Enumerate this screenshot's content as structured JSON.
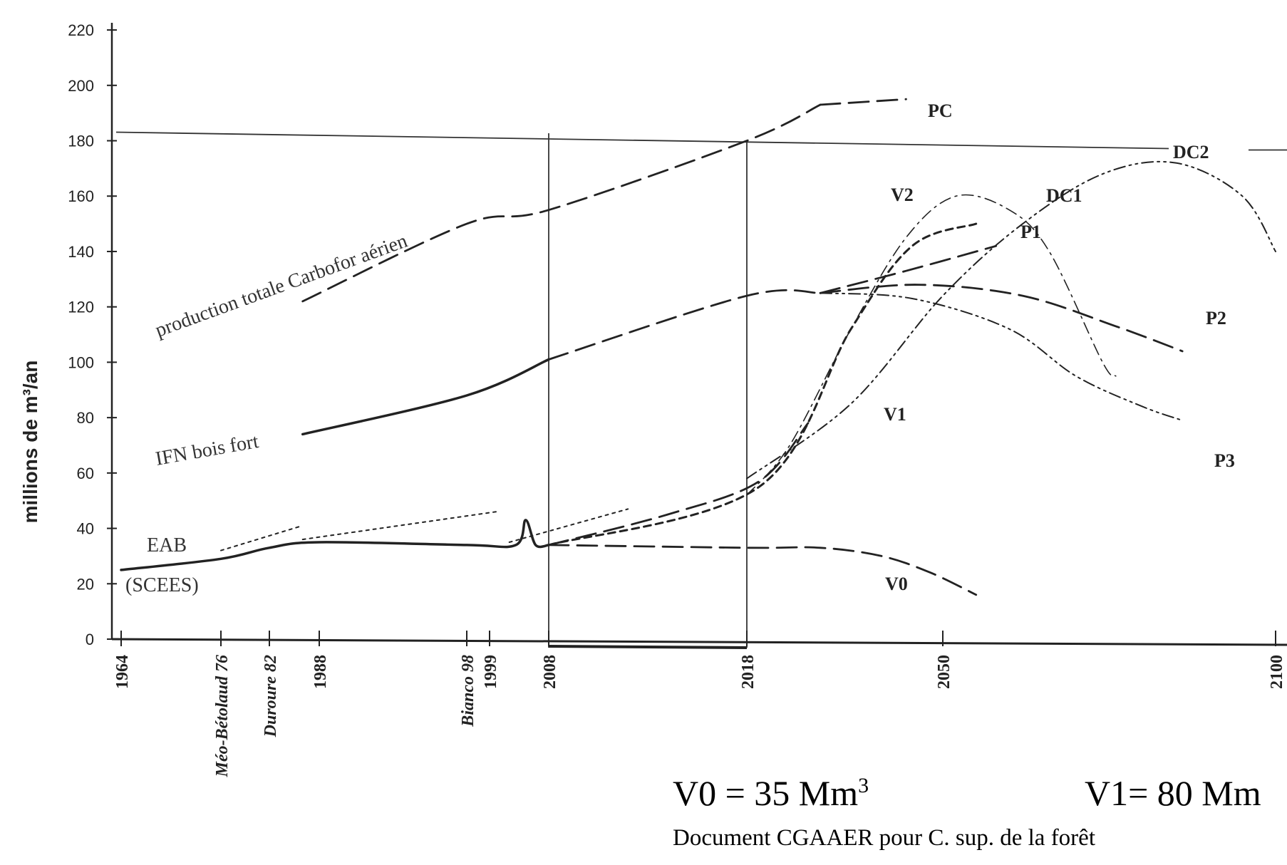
{
  "chart_data": {
    "type": "line",
    "ylabel": "millions de m³/an",
    "ylim": [
      0,
      220
    ],
    "y_ticks": [
      "0",
      "20",
      "40",
      "60",
      "80",
      "100",
      "120",
      "140",
      "160",
      "180",
      "200",
      "220"
    ],
    "x_ticks": [
      {
        "year": 1964,
        "label": "1964",
        "italic": false
      },
      {
        "year": 1976,
        "label": "Méo-Bétolaud  76",
        "italic": true
      },
      {
        "year": 1982,
        "label": "Duroure  82",
        "italic": true
      },
      {
        "year": 1988,
        "label": "1988",
        "italic": false
      },
      {
        "year": 1998,
        "label": "Bianco  98",
        "italic": true
      },
      {
        "year": 1999,
        "label": "1999",
        "italic": false
      },
      {
        "year": 2008,
        "label": "2008",
        "italic": false
      },
      {
        "year": 2018,
        "label": "2018",
        "italic": false
      },
      {
        "year": 2050,
        "label": "2050",
        "italic": false
      },
      {
        "year": 2100,
        "label": "2100",
        "italic": false
      }
    ],
    "reference_line": {
      "value": 180
    },
    "vertical_lines": [
      2008,
      2018
    ],
    "series": [
      {
        "name": "production totale Carbofor aérien",
        "style": "long-dash",
        "points": [
          [
            1986,
            122
          ],
          [
            1998,
            150
          ],
          [
            2008,
            155
          ],
          [
            2018,
            180
          ],
          [
            2030,
            193
          ]
        ]
      },
      {
        "name": "IFN bois fort",
        "style": "solid",
        "points": [
          [
            1986,
            74
          ],
          [
            1998,
            88
          ],
          [
            2008,
            101
          ]
        ]
      },
      {
        "name": "",
        "style": "long-dash",
        "points": [
          [
            2008,
            101
          ],
          [
            2018,
            124
          ],
          [
            2030,
            125
          ]
        ]
      },
      {
        "name": "EAB (SCEES)",
        "style": "solid",
        "points": [
          [
            1964,
            25
          ],
          [
            1976,
            29
          ],
          [
            1982,
            33
          ],
          [
            1988,
            35
          ],
          [
            1998,
            34
          ],
          [
            2003,
            34
          ],
          [
            2004.5,
            43
          ],
          [
            2006,
            34
          ],
          [
            2008,
            34
          ]
        ]
      },
      {
        "name": "",
        "style": "dotted",
        "points": [
          [
            1976,
            32
          ],
          [
            1986,
            41
          ]
        ]
      },
      {
        "name": "",
        "style": "dotted",
        "points": [
          [
            1986,
            36
          ],
          [
            2000,
            46
          ]
        ]
      },
      {
        "name": "",
        "style": "dotted",
        "points": [
          [
            2002,
            35
          ],
          [
            2012,
            47
          ]
        ]
      },
      {
        "name": "PC",
        "style": "long-dash",
        "points": [
          [
            2030,
            193
          ],
          [
            2044,
            195
          ]
        ]
      },
      {
        "name": "P1",
        "style": "long-dash",
        "points": [
          [
            2030,
            125
          ],
          [
            2044,
            133
          ],
          [
            2058,
            142
          ]
        ]
      },
      {
        "name": "P2",
        "style": "long-dash",
        "points": [
          [
            2030,
            125
          ],
          [
            2046,
            128
          ],
          [
            2062,
            124
          ],
          [
            2076,
            113
          ],
          [
            2086,
            104
          ]
        ]
      },
      {
        "name": "P3",
        "style": "dash-dot-dot",
        "points": [
          [
            2030,
            125
          ],
          [
            2045,
            123
          ],
          [
            2060,
            112
          ],
          [
            2070,
            95
          ],
          [
            2080,
            84
          ],
          [
            2086,
            79
          ]
        ]
      },
      {
        "name": "V0",
        "style": "long-dash",
        "points": [
          [
            2008,
            34
          ],
          [
            2018,
            33
          ],
          [
            2030,
            33
          ],
          [
            2040,
            30
          ],
          [
            2048,
            24
          ],
          [
            2055,
            16
          ]
        ]
      },
      {
        "name": "V1",
        "style": "long-dash",
        "points": [
          [
            2008,
            34
          ],
          [
            2014,
            45
          ],
          [
            2020,
            57
          ],
          [
            2028,
            78
          ]
        ]
      },
      {
        "name": "V2",
        "style": "short-dash",
        "points": [
          [
            2008,
            34
          ],
          [
            2020,
            55
          ],
          [
            2035,
            112
          ],
          [
            2045,
            142
          ],
          [
            2055,
            150
          ]
        ]
      },
      {
        "name": "DC1",
        "style": "dash-dot",
        "points": [
          [
            2018,
            52
          ],
          [
            2025,
            70
          ],
          [
            2035,
            112
          ],
          [
            2044,
            145
          ],
          [
            2052,
            160
          ],
          [
            2060,
            155
          ],
          [
            2066,
            140
          ],
          [
            2074,
            100
          ],
          [
            2076,
            95
          ]
        ]
      },
      {
        "name": "DC2",
        "style": "dash-dot-dot",
        "points": [
          [
            2018,
            58
          ],
          [
            2035,
            85
          ],
          [
            2050,
            124
          ],
          [
            2062,
            150
          ],
          [
            2074,
            168
          ],
          [
            2085,
            172
          ],
          [
            2095,
            160
          ],
          [
            2100,
            140
          ]
        ]
      }
    ],
    "text": {
      "carbofor": "production totale Carbofor aérien",
      "ifn": "IFN bois fort",
      "eab": "EAB",
      "scees": "(SCEES)",
      "pc": "PC",
      "p1": "P1",
      "p2": "P2",
      "p3": "P3",
      "v0": "V0",
      "v1": "V1",
      "v2": "V2",
      "dc1": "DC1",
      "dc2": "DC2"
    }
  },
  "bottom": {
    "v0": "V0 = 35 Mm",
    "v1": "V1= 80 Mm",
    "source": "Document CGAAER pour C. sup. de la forêt"
  }
}
